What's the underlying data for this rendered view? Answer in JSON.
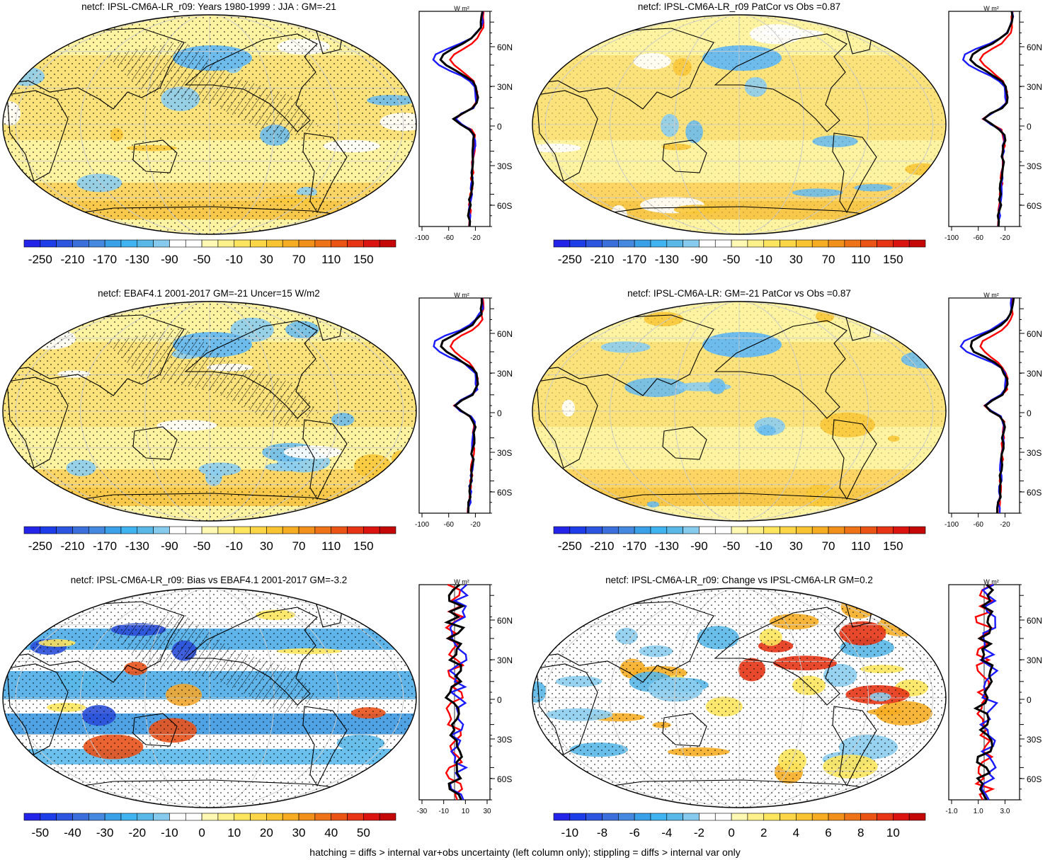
{
  "footnote": "hatching = diffs > internal var+obs uncertainty (left column only); stippling = diffs > internal var only",
  "profile_unit": "W m²",
  "lat_labels": [
    "60N",
    "30N",
    "0",
    "30S",
    "60S"
  ],
  "colors": {
    "map_outline": "#000000",
    "model_line": "#ff0000",
    "obs_line": "#1a1aff",
    "ensemble_line": "#000000"
  },
  "panels": [
    {
      "title": "netcf: IPSL-CM6A-LR_r09: Years 1980-1999 : JJA : GM=-21",
      "colorbar": "absolute",
      "xticks": [
        "-100",
        "-60",
        "-20"
      ],
      "style": "yellow_blue",
      "hatch": true
    },
    {
      "title": "netcf: IPSL-CM6A-LR_r09 PatCor vs Obs =0.87",
      "colorbar": "absolute",
      "xticks": [
        "-100",
        "-60",
        "-20"
      ],
      "style": "yellow_blue",
      "hatch": false
    },
    {
      "title": "netcf: EBAF4.1 2001-2017 GM=-21 Uncer=15 W/m2",
      "colorbar": "absolute",
      "xticks": [
        "-100",
        "-60",
        "-20"
      ],
      "style": "yellow_blue",
      "hatch": true
    },
    {
      "title": "netcf: IPSL-CM6A-LR: GM=-21 PatCor vs Obs =0.87",
      "colorbar": "absolute",
      "xticks": [
        "-100",
        "-60",
        "-20"
      ],
      "style": "yellow_blue",
      "hatch": false
    },
    {
      "title": "netcf: IPSL-CM6A-LR_r09: Bias vs EBAF4.1 2001-2017 GM=-3.2",
      "colorbar": "bias",
      "xticks": [
        "-30",
        "-10",
        "10",
        "30"
      ],
      "style": "bias",
      "hatch": true
    },
    {
      "title": "netcf: IPSL-CM6A-LR_r09: Change vs IPSL-CM6A-LR GM=0.2",
      "colorbar": "change",
      "xticks": [
        "-1.0",
        "1.0",
        "3.0"
      ],
      "style": "change",
      "hatch": false
    }
  ],
  "colorbars": {
    "absolute": {
      "labels": [
        "-250",
        "-210",
        "-170",
        "-130",
        "-90",
        "-50",
        "-10",
        "30",
        "70",
        "110",
        "150"
      ],
      "colors": [
        "#2424e8",
        "#1c3de8",
        "#2c56e0",
        "#3a6fdc",
        "#4488e0",
        "#3aa0e8",
        "#40b4f0",
        "#5ab8e8",
        "#86cbee",
        "#ffffff",
        "#ffffff",
        "#fff9b4",
        "#fef08a",
        "#fde55e",
        "#fcd646",
        "#f9c432",
        "#f6ad24",
        "#f2901c",
        "#ee7218",
        "#ea5516",
        "#e63414",
        "#dc1410",
        "#c40808"
      ]
    },
    "bias": {
      "labels": [
        "-50",
        "-40",
        "-30",
        "-20",
        "-10",
        "0",
        "10",
        "20",
        "30",
        "40",
        "50"
      ],
      "colors": [
        "#2424e8",
        "#1c3de8",
        "#2c56e0",
        "#3a6fdc",
        "#4488e0",
        "#3aa0e8",
        "#40b4f0",
        "#5ab8e8",
        "#86cbee",
        "#ffffff",
        "#ffffff",
        "#fff9b4",
        "#fef08a",
        "#fde55e",
        "#fcd646",
        "#f9c432",
        "#f6ad24",
        "#f2901c",
        "#ee7218",
        "#ea5516",
        "#e63414",
        "#dc1410",
        "#c40808"
      ]
    },
    "change": {
      "labels": [
        "-10",
        "-8",
        "-6",
        "-4",
        "-2",
        "0",
        "2",
        "4",
        "6",
        "8",
        "10"
      ],
      "colors": [
        "#2424e8",
        "#1c3de8",
        "#2c56e0",
        "#3a6fdc",
        "#4488e0",
        "#3aa0e8",
        "#40b4f0",
        "#5ab8e8",
        "#86cbee",
        "#ffffff",
        "#ffffff",
        "#fff9b4",
        "#fef08a",
        "#fde55e",
        "#fcd646",
        "#f9c432",
        "#f6ad24",
        "#f2901c",
        "#ee7218",
        "#ea5516",
        "#e63414",
        "#dc1410",
        "#c40808"
      ]
    }
  }
}
